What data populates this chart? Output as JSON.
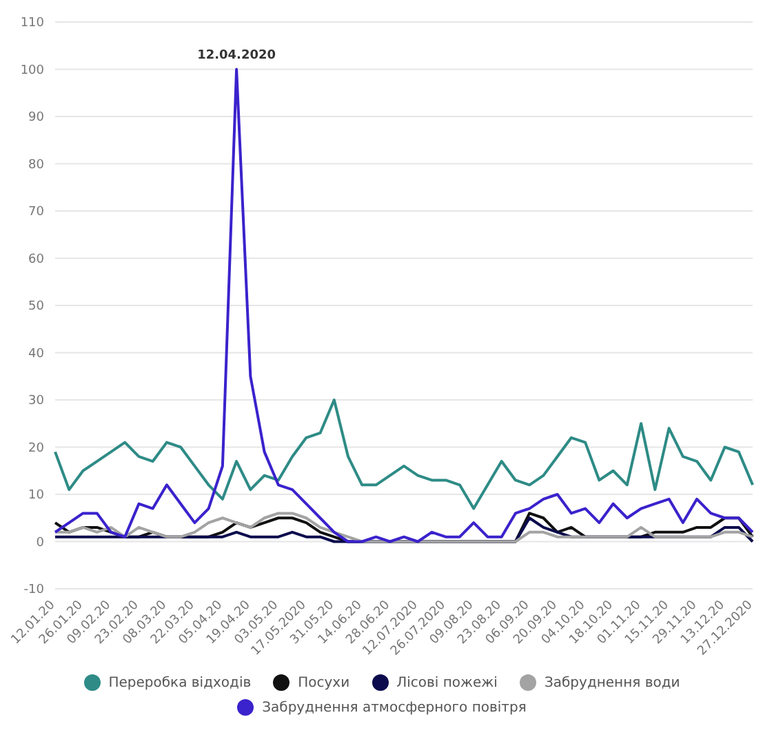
{
  "chart_data": {
    "type": "line",
    "categories": [
      "12.01.20",
      null,
      "26.01.20",
      null,
      "09.02.20",
      null,
      "23.02.20",
      null,
      "08.03.20",
      null,
      "22.03.20",
      null,
      "05.04.20",
      null,
      "19.04.20",
      null,
      "03.05.20",
      null,
      "17.05.2020",
      null,
      "31.05.20",
      null,
      "14.06.20",
      null,
      "28.06.20",
      null,
      "12.07.2020",
      null,
      "26.07.2020",
      null,
      "09.08.20",
      null,
      "23.08.20",
      null,
      "06.09.20",
      null,
      "20.09.20",
      null,
      "04.10.20",
      null,
      "18.10.20",
      null,
      "01.11.20",
      null,
      "15.11.20",
      null,
      "29.11.20",
      null,
      "13.12.20",
      null,
      "27.12.2020"
    ],
    "series": [
      {
        "name": "Переробка відходів",
        "color": "#2e8b86",
        "values": [
          19,
          11,
          15,
          17,
          19,
          21,
          18,
          17,
          21,
          20,
          16,
          12,
          9,
          17,
          11,
          14,
          13,
          18,
          22,
          23,
          30,
          18,
          12,
          12,
          14,
          16,
          14,
          13,
          13,
          12,
          7,
          12,
          17,
          13,
          12,
          14,
          18,
          22,
          21,
          13,
          15,
          12,
          25,
          11,
          24,
          18,
          17,
          13,
          20,
          19,
          12
        ]
      },
      {
        "name": "Посухи",
        "color": "#111111",
        "values": [
          4,
          2,
          3,
          3,
          2,
          1,
          1,
          2,
          1,
          1,
          1,
          1,
          2,
          4,
          3,
          4,
          5,
          5,
          4,
          2,
          1,
          0,
          0,
          0,
          0,
          0,
          0,
          0,
          0,
          0,
          0,
          0,
          0,
          0,
          6,
          5,
          2,
          3,
          1,
          1,
          1,
          1,
          1,
          2,
          2,
          2,
          3,
          3,
          5,
          5,
          1
        ]
      },
      {
        "name": "Лісові пожежі",
        "color": "#0b0b4d",
        "values": [
          1,
          1,
          1,
          1,
          1,
          1,
          1,
          1,
          1,
          1,
          1,
          1,
          1,
          2,
          1,
          1,
          1,
          2,
          1,
          1,
          0,
          0,
          0,
          0,
          0,
          0,
          0,
          0,
          0,
          0,
          0,
          0,
          0,
          0,
          5,
          3,
          2,
          1,
          1,
          1,
          1,
          1,
          1,
          1,
          1,
          1,
          1,
          1,
          3,
          3,
          0
        ]
      },
      {
        "name": "Забруднення води",
        "color": "#a3a3a3",
        "values": [
          2,
          2,
          3,
          2,
          3,
          1,
          3,
          2,
          1,
          1,
          2,
          4,
          5,
          4,
          3,
          5,
          6,
          6,
          5,
          3,
          2,
          1,
          0,
          0,
          0,
          0,
          0,
          0,
          0,
          0,
          0,
          0,
          0,
          0,
          2,
          2,
          1,
          1,
          1,
          1,
          1,
          1,
          3,
          1,
          1,
          1,
          1,
          1,
          2,
          2,
          1
        ]
      },
      {
        "name": "Забруднення атмосферного повітря",
        "color": "#3a22cc",
        "values": [
          2,
          4,
          6,
          6,
          2,
          1,
          8,
          7,
          12,
          8,
          4,
          7,
          16,
          100,
          35,
          19,
          12,
          11,
          8,
          5,
          2,
          0,
          0,
          1,
          0,
          1,
          0,
          2,
          1,
          1,
          4,
          1,
          1,
          6,
          7,
          9,
          10,
          6,
          7,
          4,
          8,
          5,
          7,
          8,
          9,
          4,
          9,
          6,
          5,
          5,
          2
        ]
      }
    ],
    "ylim": [
      -10,
      110
    ],
    "yticks": [
      -10,
      0,
      10,
      20,
      30,
      40,
      50,
      60,
      70,
      80,
      90,
      100,
      110
    ],
    "grid": "y",
    "legend": "bottom",
    "marker": "none",
    "line_style": "solid",
    "annotations": [
      {
        "text": "12.04.2020",
        "y": 100
      }
    ]
  }
}
